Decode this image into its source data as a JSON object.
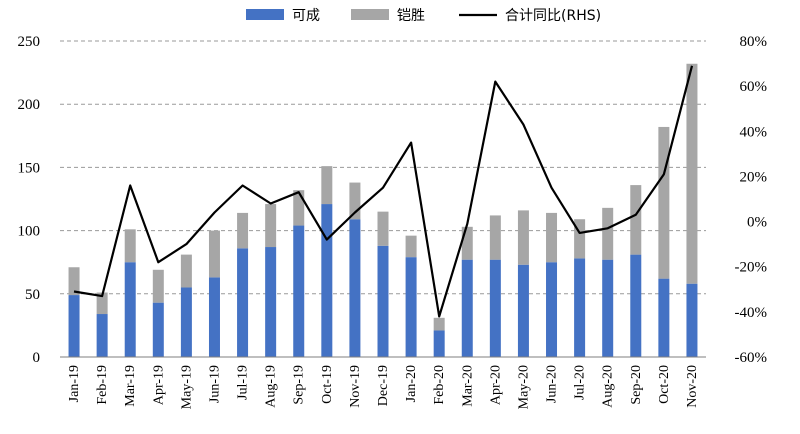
{
  "chart_data": {
    "type": "bar",
    "stacked": true,
    "categories": [
      "Jan-19",
      "Feb-19",
      "Mar-19",
      "Apr-19",
      "May-19",
      "Jun-19",
      "Jul-19",
      "Aug-19",
      "Sep-19",
      "Oct-19",
      "Nov-19",
      "Dec-19",
      "Jan-20",
      "Feb-20",
      "Mar-20",
      "Apr-20",
      "May-20",
      "Jun-20",
      "Jul-20",
      "Aug-20",
      "Sep-20",
      "Oct-20",
      "Nov-20"
    ],
    "series": [
      {
        "name": "可成",
        "color": "#4472C4",
        "axis": "left",
        "values": [
          49,
          34,
          75,
          43,
          55,
          63,
          86,
          87,
          104,
          121,
          109,
          88,
          79,
          21,
          77,
          77,
          73,
          75,
          78,
          77,
          81,
          62,
          58
        ]
      },
      {
        "name": "铠胜",
        "color": "#A6A6A6",
        "axis": "left",
        "values": [
          22,
          17,
          26,
          26,
          26,
          37,
          28,
          34,
          28,
          30,
          29,
          27,
          17,
          10,
          26,
          35,
          43,
          39,
          31,
          41,
          55,
          120,
          174
        ]
      },
      {
        "name": "合计同比(RHS)",
        "color": "#000000",
        "axis": "right",
        "kind": "line",
        "values": [
          -31,
          -33,
          16,
          -18,
          -10,
          4,
          16,
          8,
          13,
          -8,
          4,
          15,
          35,
          -42,
          -1,
          62,
          43,
          15,
          -5,
          -3,
          3,
          21,
          69
        ]
      }
    ],
    "y_left": {
      "ylim": [
        0,
        250
      ],
      "ticks": [
        0,
        50,
        100,
        150,
        200,
        250
      ]
    },
    "y_right": {
      "ylim": [
        -60,
        80
      ],
      "ticks": [
        "-60%",
        "-40%",
        "-20%",
        "0%",
        "20%",
        "40%",
        "60%",
        "80%"
      ]
    },
    "grid": "horizontal-dashed",
    "legend": "top"
  }
}
